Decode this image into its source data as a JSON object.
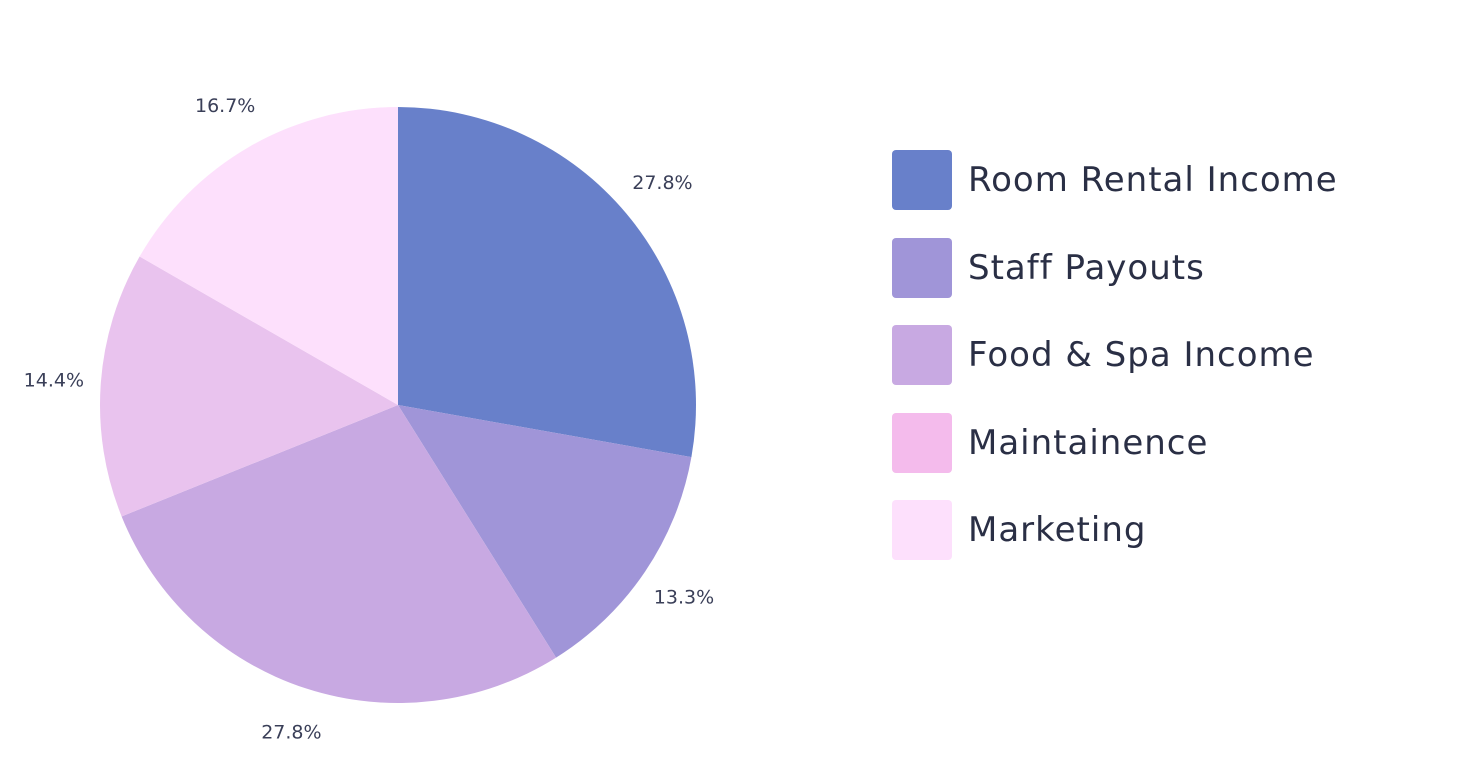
{
  "chart_data": {
    "type": "pie",
    "categories": [
      "Room Rental Income",
      "Staff Payouts",
      "Food & Spa Income",
      "Maintainence",
      "Marketing"
    ],
    "values": [
      27.8,
      13.3,
      27.8,
      14.4,
      16.7
    ],
    "slice_labels": [
      "27.8%",
      "13.3%",
      "27.8%",
      "14.4%",
      "16.7%"
    ],
    "colors": [
      "#6880ca",
      "#a095d8",
      "#c8a9e2",
      "#e9c3ee",
      "#fde0fc"
    ],
    "start_angle": "12 o'clock",
    "direction": "clockwise",
    "legend_position": "right"
  }
}
